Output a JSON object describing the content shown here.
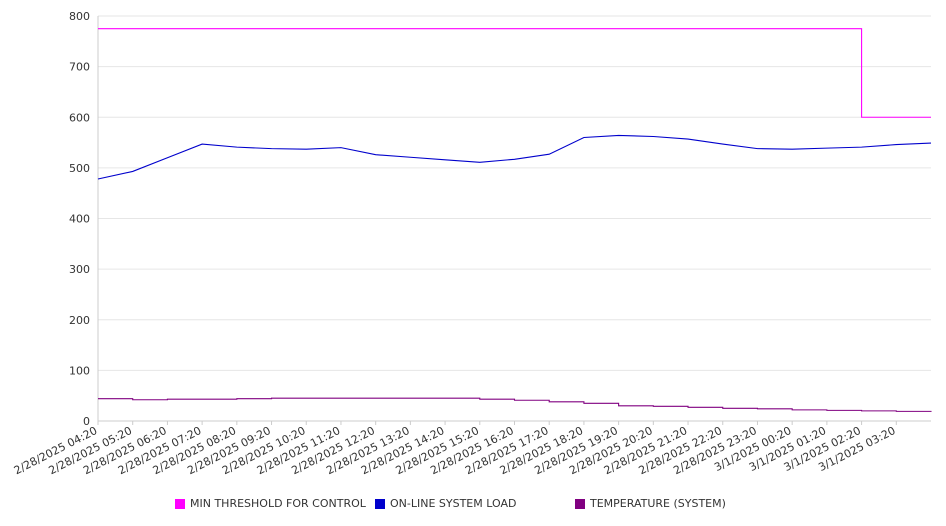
{
  "chart_data": {
    "type": "line",
    "ylim": [
      0,
      800
    ],
    "y_ticks": [
      0,
      100,
      200,
      300,
      400,
      500,
      600,
      700,
      800
    ],
    "x_tick_labels": [
      "2/28/2025 04:20",
      "2/28/2025 05:20",
      "2/28/2025 06:20",
      "2/28/2025 07:20",
      "2/28/2025 08:20",
      "2/28/2025 09:20",
      "2/28/2025 10:20",
      "2/28/2025 11:20",
      "2/28/2025 12:20",
      "2/28/2025 13:20",
      "2/28/2025 14:20",
      "2/28/2025 15:20",
      "2/28/2025 16:20",
      "2/28/2025 17:20",
      "2/28/2025 18:20",
      "2/28/2025 19:20",
      "2/28/2025 20:20",
      "2/28/2025 21:20",
      "2/28/2025 22:20",
      "2/28/2025 23:20",
      "3/1/2025 00:20",
      "3/1/2025 01:20",
      "3/1/2025 02:20",
      "3/1/2025 03:20"
    ],
    "x": [
      "2/28/2025 04:20",
      "2/28/2025 05:20",
      "2/28/2025 06:20",
      "2/28/2025 07:20",
      "2/28/2025 08:20",
      "2/28/2025 09:20",
      "2/28/2025 10:20",
      "2/28/2025 11:20",
      "2/28/2025 12:20",
      "2/28/2025 13:20",
      "2/28/2025 14:20",
      "2/28/2025 15:20",
      "2/28/2025 16:20",
      "2/28/2025 17:20",
      "2/28/2025 18:20",
      "2/28/2025 19:20",
      "2/28/2025 20:20",
      "2/28/2025 21:20",
      "2/28/2025 22:20",
      "2/28/2025 23:20",
      "3/1/2025 00:20",
      "3/1/2025 01:20",
      "3/1/2025 02:20",
      "3/1/2025 03:20",
      "3/1/2025 04:20"
    ],
    "grid": true,
    "legend_position": "bottom",
    "series": [
      {
        "name": "MIN THRESHOLD FOR CONTROL",
        "color": "#ff00ff",
        "shape": "step",
        "values": [
          775,
          775,
          775,
          775,
          775,
          775,
          775,
          775,
          775,
          775,
          775,
          775,
          775,
          775,
          775,
          775,
          775,
          775,
          775,
          775,
          775,
          775,
          600,
          600,
          600
        ]
      },
      {
        "name": "ON-LINE SYSTEM LOAD",
        "color": "#0000cc",
        "shape": "line",
        "values": [
          478,
          493,
          520,
          547,
          541,
          538,
          537,
          540,
          526,
          521,
          516,
          511,
          517,
          527,
          560,
          564,
          562,
          557,
          547,
          538,
          537,
          539,
          541,
          546,
          549
        ]
      },
      {
        "name": "TEMPERATURE (SYSTEM)",
        "color": "#800080",
        "shape": "step",
        "values": [
          44,
          42,
          43,
          43,
          44,
          45,
          45,
          45,
          45,
          45,
          45,
          43,
          41,
          38,
          35,
          30,
          29,
          27,
          25,
          24,
          22,
          21,
          20,
          19,
          18
        ]
      }
    ]
  }
}
